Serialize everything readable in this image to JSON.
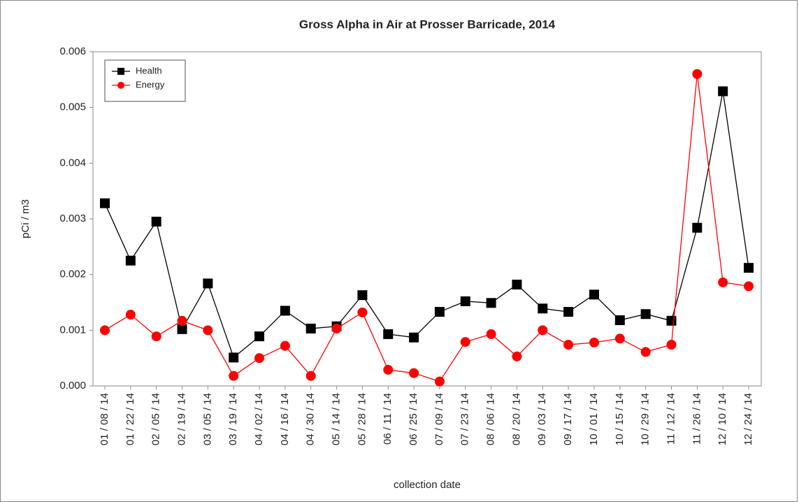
{
  "chart_data": {
    "type": "line",
    "title": "Gross Alpha in Air at Prosser Barricade, 2014",
    "x_label": "collection date",
    "y_label": "pCi / m3",
    "categories": [
      "01 / 08 / 14",
      "01 / 22 / 14",
      "02 / 05 / 14",
      "02 / 19 / 14",
      "03 / 05 / 14",
      "03 / 19 / 14",
      "04 / 02 / 14",
      "04 / 16 / 14",
      "04 / 30 / 14",
      "05 / 14 / 14",
      "05 / 28 / 14",
      "06 / 11 / 14",
      "06 / 25 / 14",
      "07 / 09 / 14",
      "07 / 23 / 14",
      "08 / 06 / 14",
      "08 / 20 / 14",
      "09 / 03 / 14",
      "09 / 17 / 14",
      "10 / 01 / 14",
      "10 / 15 / 14",
      "10 / 29 / 14",
      "11 / 12 / 14",
      "11 / 26 / 14",
      "12 / 10 / 14",
      "12 / 24 / 14"
    ],
    "series": [
      {
        "name": "Health",
        "color": "#000000",
        "marker": "square",
        "values": [
          0.00328,
          0.00225,
          0.00295,
          0.00102,
          0.00184,
          0.00051,
          0.00089,
          0.00135,
          0.00103,
          0.00107,
          0.00163,
          0.00093,
          0.00087,
          0.00133,
          0.00152,
          0.00149,
          0.00182,
          0.00139,
          0.00133,
          0.00164,
          0.00118,
          0.00129,
          0.00117,
          0.00284,
          0.00529,
          0.00212
        ]
      },
      {
        "name": "Energy",
        "color": "#ff0000",
        "marker": "circle",
        "values": [
          0.001,
          0.00128,
          0.00089,
          0.00117,
          0.001,
          0.00018,
          0.0005,
          0.00072,
          0.00018,
          0.00103,
          0.00132,
          0.00029,
          0.00023,
          8e-05,
          0.00079,
          0.00093,
          0.00053,
          0.001,
          0.00074,
          0.00078,
          0.00085,
          0.00061,
          0.00074,
          0.0056,
          0.00186,
          0.00179
        ]
      }
    ],
    "ylim": [
      0,
      0.006
    ],
    "yticks": [
      {
        "value": 0,
        "label": "0.000"
      },
      0.001,
      0.002,
      0.003,
      0.004,
      0.005,
      0.006
    ],
    "grid": false,
    "legend": "top-left"
  }
}
